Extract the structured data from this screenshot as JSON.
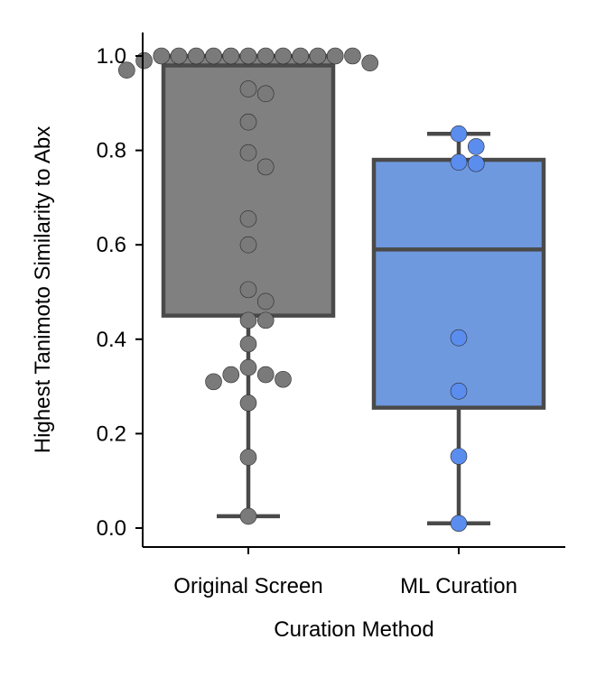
{
  "chart_data": {
    "type": "box",
    "xlabel": "Curation Method",
    "ylabel": "Highest Tanimoto Similarity to Abx",
    "categories": [
      "Original Screen",
      "ML Curation"
    ],
    "ylim": [
      -0.04,
      1.05
    ],
    "yticks": [
      0.0,
      0.2,
      0.4,
      0.6,
      0.8,
      1.0
    ],
    "ytick_labels": [
      "0.0",
      "0.2",
      "0.4",
      "0.6",
      "0.8",
      "1.0"
    ],
    "grid": false,
    "series": [
      {
        "box_color": "#808080",
        "point_color": "#7a7a7a",
        "whisker_low": 0.025,
        "q1": 0.45,
        "median": 0.98,
        "q3": 1.0,
        "whisker_high": 1.0,
        "points": [
          1.0,
          1.0,
          1.0,
          1.0,
          1.0,
          1.0,
          1.0,
          1.0,
          1.0,
          1.0,
          1.0,
          1.0,
          0.99,
          0.985,
          0.97,
          0.93,
          0.92,
          0.86,
          0.795,
          0.765,
          0.655,
          0.6,
          0.505,
          0.48,
          0.44,
          0.44,
          0.39,
          0.34,
          0.325,
          0.325,
          0.315,
          0.31,
          0.265,
          0.15,
          0.025
        ]
      },
      {
        "box_color": "#6f99df",
        "point_color": "#5b8def",
        "whisker_low": 0.01,
        "q1": 0.255,
        "median": 0.59,
        "q3": 0.78,
        "whisker_high": 0.835,
        "points": [
          0.835,
          0.808,
          0.775,
          0.772,
          0.403,
          0.29,
          0.152,
          0.01
        ]
      }
    ]
  }
}
